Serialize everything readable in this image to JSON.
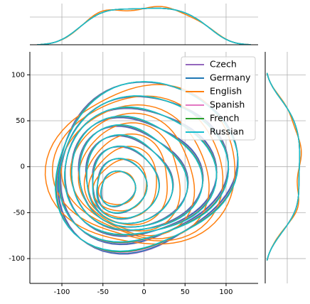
{
  "chart_data": {
    "type": "kde-joint",
    "series": [
      {
        "name": "Czech",
        "color": "#9467bd"
      },
      {
        "name": "Germany",
        "color": "#1f77b4"
      },
      {
        "name": "English",
        "color": "#ff7f0e"
      },
      {
        "name": "Spanish",
        "color": "#e377c2"
      },
      {
        "name": "French",
        "color": "#2ca02c"
      },
      {
        "name": "Russian",
        "color": "#17becf"
      }
    ],
    "xlim": [
      -139,
      139
    ],
    "xticks": [
      -100,
      -50,
      0,
      50,
      100
    ],
    "ylim": [
      -127,
      125
    ],
    "yticks": [
      -100,
      -50,
      0,
      50,
      100
    ],
    "grid": true,
    "legend": "upper right"
  }
}
